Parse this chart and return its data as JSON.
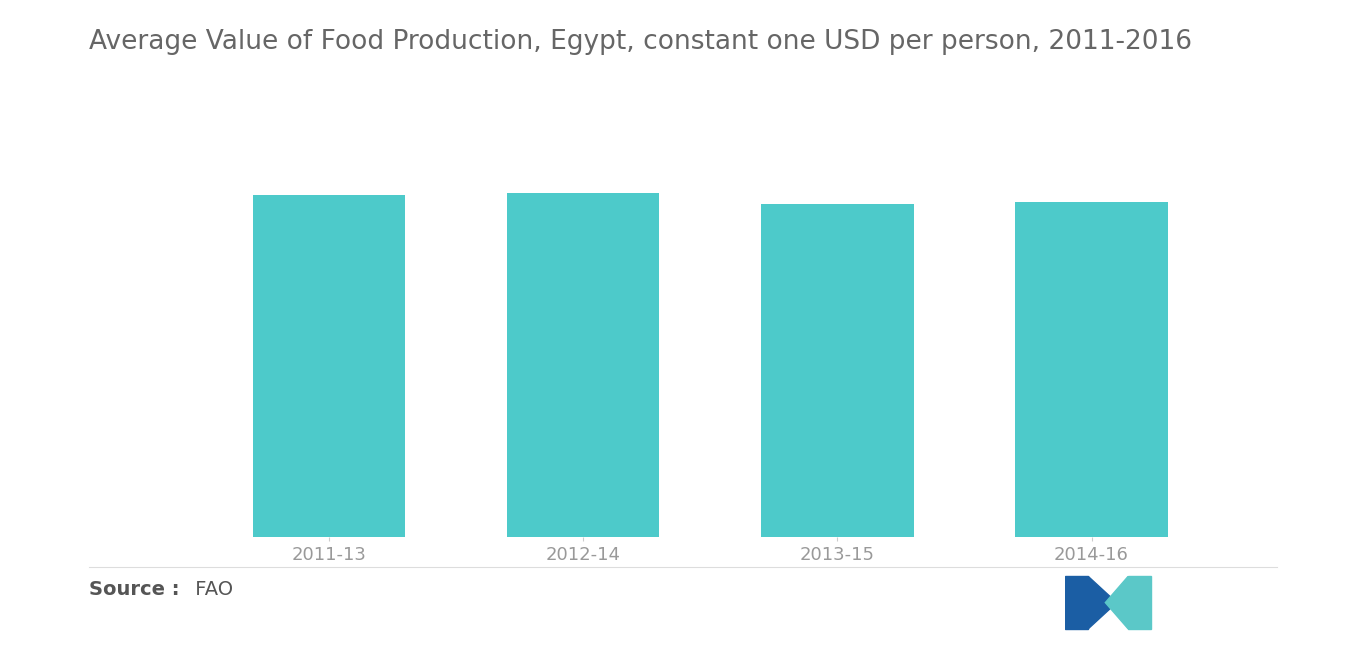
{
  "title": "Average Value of Food Production, Egypt, constant one USD per person, 2011-2016",
  "categories": [
    "2011-13",
    "2012-14",
    "2013-15",
    "2014-16"
  ],
  "values": [
    100,
    100.8,
    97.5,
    98.2
  ],
  "bar_color": "#4DCACA",
  "background_color": "#ffffff",
  "title_fontsize": 19,
  "tick_fontsize": 13,
  "source_text_bold": "Source :",
  "source_text_normal": " FAO",
  "source_fontsize": 14,
  "ylim": [
    0,
    115
  ],
  "bar_width": 0.6,
  "title_color": "#666666",
  "tick_color": "#999999",
  "logo_dark_blue": "#1B5EA4",
  "logo_light_teal": "#5BC8C8"
}
